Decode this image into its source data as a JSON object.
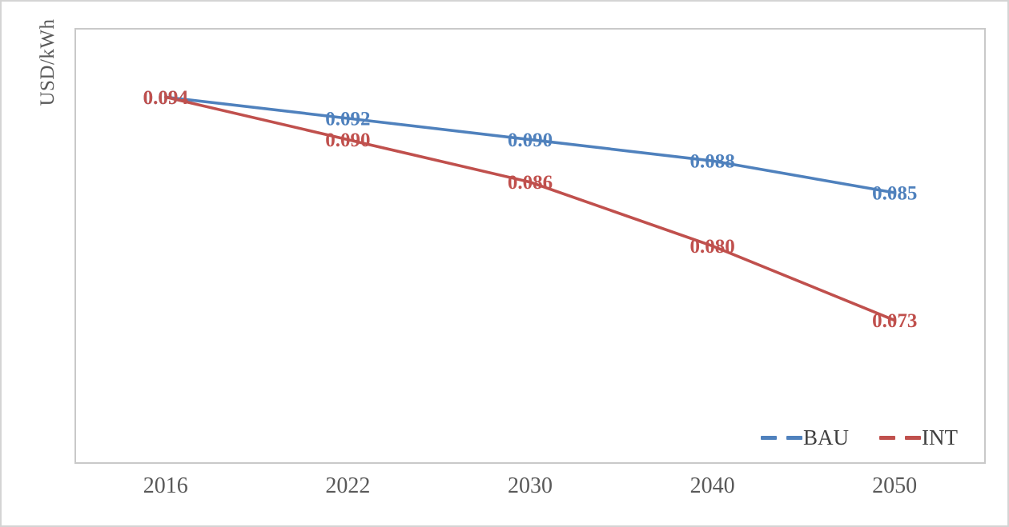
{
  "figure": {
    "y_axis_title": "USD/kWh"
  },
  "chart_data": {
    "type": "line",
    "title": "",
    "xlabel": "",
    "ylabel": "USD/kWh",
    "categories": [
      "2016",
      "2022",
      "2030",
      "2040",
      "2050"
    ],
    "series": [
      {
        "name": "BAU",
        "color": "#4F81BD",
        "values": [
          0.094,
          0.092,
          0.09,
          0.088,
          0.085
        ],
        "labels": [
          "0.094",
          "0.092",
          "0.090",
          "0.088",
          "0.085"
        ]
      },
      {
        "name": "INT",
        "color": "#C0504D",
        "values": [
          0.094,
          0.09,
          0.086,
          0.08,
          0.073
        ],
        "labels": [
          "0.094",
          "0.090",
          "0.086",
          "0.080",
          "0.073"
        ]
      }
    ],
    "ylim": [
      0.0595,
      0.1005
    ],
    "grid": false,
    "y_tick_labels_visible": false,
    "data_labels_position": "center",
    "line_style": "solid",
    "legend_position": "bottom-right-inside",
    "legend_marker_style": "dashed"
  }
}
